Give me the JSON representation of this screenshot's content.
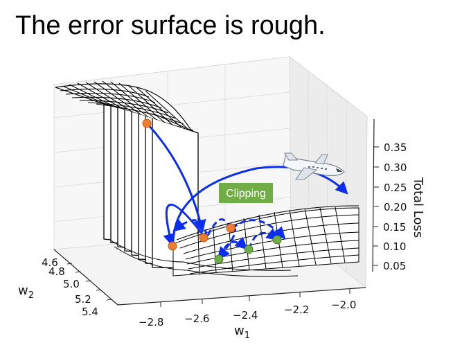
{
  "slide": {
    "title": "The error surface is rough."
  },
  "colors": {
    "mesh": "#000000",
    "arrow": "#0a2df0",
    "orange_point": "#ed7d31",
    "green_point": "#70ad47",
    "clipping_box": "#70ad47"
  },
  "icons": [
    "airplane-icon"
  ],
  "figure": {
    "z_axis": {
      "label": "Total Loss",
      "ticks": [
        "0.35",
        "0.30",
        "0.25",
        "0.20",
        "0.15",
        "0.10",
        "0.05"
      ]
    },
    "w1_axis": {
      "label": "w",
      "subscript": "1",
      "ticks": [
        "−2.8",
        "−2.6",
        "−2.4",
        "−2.2",
        "−2.0"
      ]
    },
    "w2_axis": {
      "label": "w",
      "subscript": "2",
      "ticks": [
        "4.6",
        "4.8",
        "5.0",
        "5.2",
        "5.4"
      ]
    },
    "clipping_label": "Clipping"
  }
}
